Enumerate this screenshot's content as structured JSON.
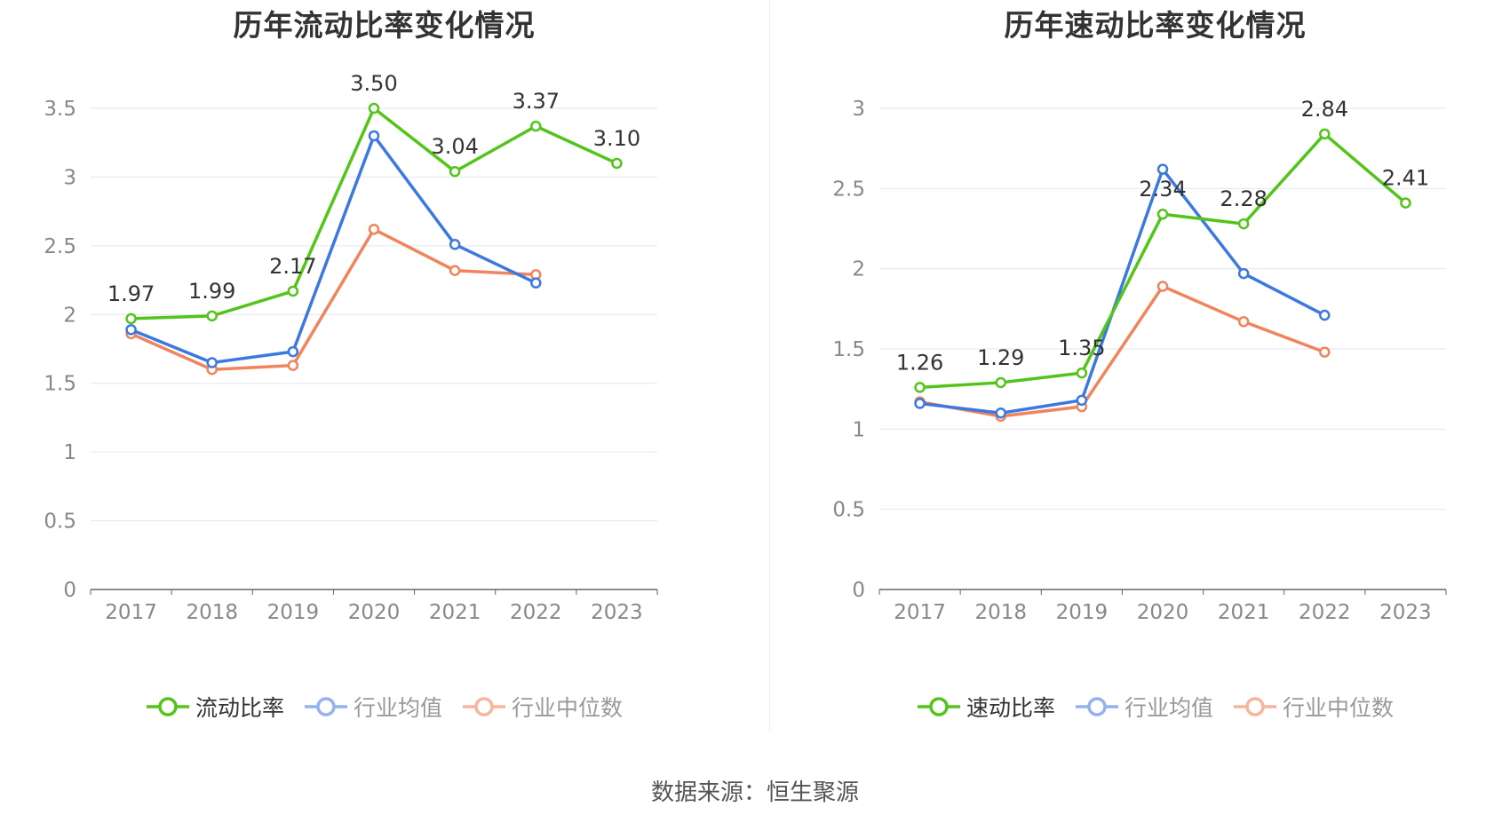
{
  "source": "数据来源：恒生聚源",
  "chart_data": [
    {
      "type": "line",
      "title": "历年流动比率变化情况",
      "categories": [
        "2017",
        "2018",
        "2019",
        "2020",
        "2021",
        "2022",
        "2023"
      ],
      "ylim": [
        0,
        3.5
      ],
      "yticks": [
        0,
        0.5,
        1,
        1.5,
        2,
        2.5,
        3,
        3.5
      ],
      "ytick_labels": [
        "0",
        "0.5",
        "1",
        "1.5",
        "2",
        "2.5",
        "3",
        "3.5"
      ],
      "grid": true,
      "legend_position": "bottom-center",
      "series": [
        {
          "name": "流动比率",
          "color": "#52c41a",
          "values": [
            1.97,
            1.99,
            2.17,
            3.5,
            3.04,
            3.37,
            3.1
          ],
          "labels": [
            "1.97",
            "1.99",
            "2.17",
            "3.50",
            "3.04",
            "3.37",
            "3.10"
          ]
        },
        {
          "name": "行业均值",
          "color": "#3b78e0",
          "values": [
            1.89,
            1.65,
            1.73,
            3.3,
            2.51,
            2.23,
            null
          ]
        },
        {
          "name": "行业中位数",
          "color": "#f0845c",
          "values": [
            1.86,
            1.6,
            1.63,
            2.62,
            2.32,
            2.29,
            null
          ]
        }
      ]
    },
    {
      "type": "line",
      "title": "历年速动比率变化情况",
      "categories": [
        "2017",
        "2018",
        "2019",
        "2020",
        "2021",
        "2022",
        "2023"
      ],
      "ylim": [
        0,
        3
      ],
      "yticks": [
        0,
        0.5,
        1,
        1.5,
        2,
        2.5,
        3
      ],
      "ytick_labels": [
        "0",
        "0.5",
        "1",
        "1.5",
        "2",
        "2.5",
        "3"
      ],
      "grid": true,
      "legend_position": "bottom-center",
      "series": [
        {
          "name": "速动比率",
          "color": "#52c41a",
          "values": [
            1.26,
            1.29,
            1.35,
            2.34,
            2.28,
            2.84,
            2.41
          ],
          "labels": [
            "1.26",
            "1.29",
            "1.35",
            "2.34",
            "2.28",
            "2.84",
            "2.41"
          ]
        },
        {
          "name": "行业均值",
          "color": "#3b78e0",
          "values": [
            1.16,
            1.1,
            1.18,
            2.62,
            1.97,
            1.71,
            null
          ]
        },
        {
          "name": "行业中位数",
          "color": "#f0845c",
          "values": [
            1.17,
            1.08,
            1.14,
            1.89,
            1.67,
            1.48,
            null
          ]
        }
      ]
    }
  ]
}
